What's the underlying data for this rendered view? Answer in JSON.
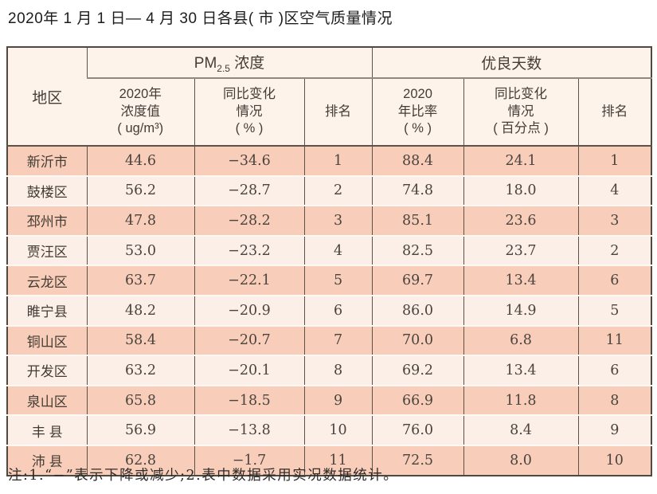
{
  "title": "2020年 1 月 1 日— 4 月 30 日各县( 市 )区空气质量情况",
  "note": "注:1.“−”表示下降或减少;2.表中数据采用实况数据统计。",
  "table": {
    "region_header": "地区",
    "pm_group": {
      "base": "PM",
      "sub": "2.5",
      "label": " 浓度"
    },
    "days_group": "优良天数",
    "sub_headers": {
      "pm_value": "2020年\n浓度值\n( ug/m³)",
      "pm_change": "同比变化\n情况\n( % )",
      "pm_rank": "排名",
      "days_rate": "2020\n年比率\n( % )",
      "days_change": "同比变化\n情况\n( 百分点 )",
      "days_rank": "排名"
    }
  },
  "colors": {
    "title-text": "#1c1c1c",
    "header-bg": "#fdf3eb",
    "header-text": "#443d36",
    "row-odd": "#f8cdb9",
    "row-even": "#fcefe7",
    "row-sep": "#fdf8f4",
    "border-dark": "#51483f",
    "border-mid": "#5b5248",
    "group-line": "#90897f",
    "cell-text": "#4a443e",
    "region-text": "#423c35",
    "note-text": "#2f2b28"
  },
  "chart_data": {
    "type": "table",
    "title": "2020年1月1日—4月30日各县(市)区空气质量情况",
    "column_groups": [
      "地区",
      "PM2.5浓度",
      "优良天数"
    ],
    "columns": [
      "地区",
      "2020年浓度值(ug/m³)",
      "同比变化情况(%)",
      "排名",
      "2020年比率(%)",
      "同比变化情况(百分点)",
      "排名"
    ],
    "rows": [
      [
        "新沂市",
        "44.6",
        "−34.6",
        "1",
        "88.4",
        "24.1",
        "1"
      ],
      [
        "鼓楼区",
        "56.2",
        "−28.7",
        "2",
        "74.8",
        "18.0",
        "4"
      ],
      [
        "邳州市",
        "47.8",
        "−28.2",
        "3",
        "85.1",
        "23.6",
        "3"
      ],
      [
        "贾汪区",
        "53.0",
        "−23.2",
        "4",
        "82.5",
        "23.7",
        "2"
      ],
      [
        "云龙区",
        "63.7",
        "−22.1",
        "5",
        "69.7",
        "13.4",
        "6"
      ],
      [
        "睢宁县",
        "48.2",
        "−20.9",
        "6",
        "86.0",
        "14.9",
        "5"
      ],
      [
        "铜山区",
        "58.4",
        "−20.7",
        "7",
        "70.0",
        "6.8",
        "11"
      ],
      [
        "开发区",
        "63.2",
        "−20.1",
        "8",
        "69.2",
        "13.4",
        "6"
      ],
      [
        "泉山区",
        "65.8",
        "−18.5",
        "9",
        "66.9",
        "11.8",
        "8"
      ],
      [
        "丰 县",
        "56.9",
        "−13.8",
        "10",
        "76.0",
        "8.4",
        "9"
      ],
      [
        "沛 县",
        "62.8",
        "−1.7",
        "11",
        "72.5",
        "8.0",
        "10"
      ]
    ],
    "note": "注:1.“−”表示下降或减少;2.表中数据采用实况数据统计。"
  }
}
